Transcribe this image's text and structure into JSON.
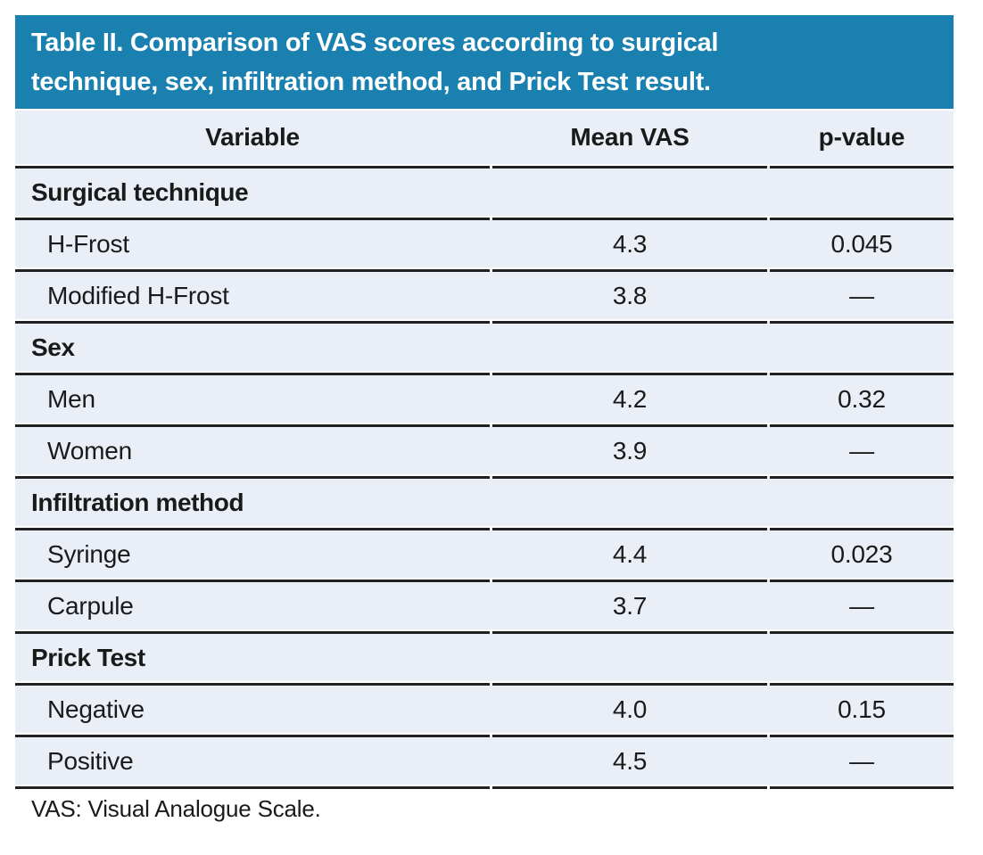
{
  "title_lines": [
    "Table II. Comparison of VAS scores according to surgical",
    "technique, sex, infiltration method, and Prick Test result."
  ],
  "columns": [
    "Variable",
    "Mean VAS",
    "p-value"
  ],
  "sections": [
    {
      "label": "Surgical technique",
      "rows": [
        {
          "variable": "H-Frost",
          "mean_vas": "4.3",
          "p_value": "0.045"
        },
        {
          "variable": "Modified H-Frost",
          "mean_vas": "3.8",
          "p_value": "—"
        }
      ]
    },
    {
      "label": "Sex",
      "rows": [
        {
          "variable": "Men",
          "mean_vas": "4.2",
          "p_value": "0.32"
        },
        {
          "variable": "Women",
          "mean_vas": "3.9",
          "p_value": "—"
        }
      ]
    },
    {
      "label": "Infiltration method",
      "rows": [
        {
          "variable": "Syringe",
          "mean_vas": "4.4",
          "p_value": "0.023"
        },
        {
          "variable": "Carpule",
          "mean_vas": "3.7",
          "p_value": "—"
        }
      ]
    },
    {
      "label": "Prick Test",
      "rows": [
        {
          "variable": "Negative",
          "mean_vas": "4.0",
          "p_value": "0.15"
        },
        {
          "variable": "Positive",
          "mean_vas": "4.5",
          "p_value": "—"
        }
      ]
    }
  ],
  "footnote": "VAS: Visual Analogue Scale.",
  "colors": {
    "title_bg": "#1a80af",
    "title_text": "#ffffff",
    "row_bg": "#eaeff7",
    "rule": "#212121",
    "text": "#1a1a1a"
  }
}
